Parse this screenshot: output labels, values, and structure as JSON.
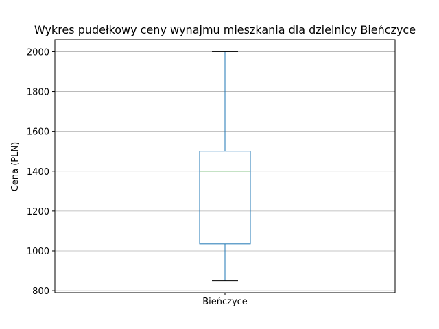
{
  "chart_data": {
    "type": "box",
    "title": "Wykres pudełkowy ceny wynajmu mieszkania dla dzielnicy  Bieńczyce",
    "xlabel": "",
    "ylabel": "Cena (PLN)",
    "categories": [
      "Bieńczyce"
    ],
    "boxes": [
      {
        "category": "Bieńczyce",
        "whisker_low": 850,
        "q1": 1035,
        "median": 1400,
        "q3": 1500,
        "whisker_high": 2000
      }
    ],
    "ylim": [
      790,
      2060
    ],
    "yticks": [
      800,
      1000,
      1200,
      1400,
      1600,
      1800,
      2000
    ],
    "ytick_labels": [
      "800",
      "1000",
      "1200",
      "1400",
      "1600",
      "1800",
      "2000"
    ],
    "grid": "horizontal",
    "legend": "none",
    "colors": {
      "box": "#1f77b4",
      "median": "#2ca02c",
      "whisker": "#1f77b4",
      "cap": "#000000",
      "grid": "#b0b0b0",
      "axes": "#000000"
    }
  }
}
